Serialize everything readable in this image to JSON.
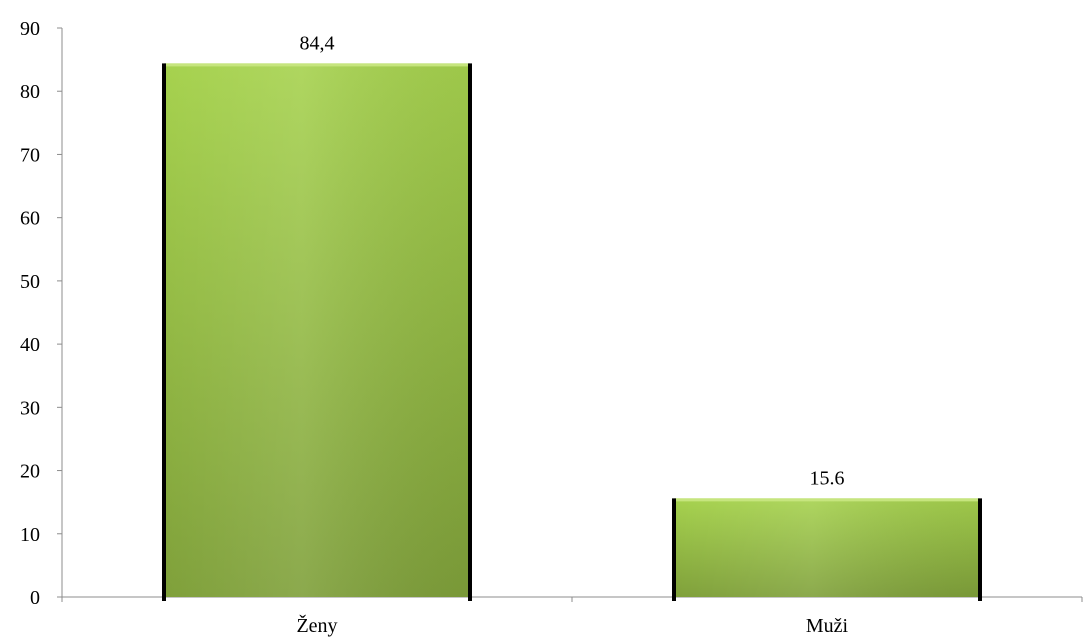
{
  "chart_data": {
    "type": "bar",
    "title": "",
    "xlabel": "",
    "ylabel": "",
    "categories": [
      "Ženy",
      "Muži"
    ],
    "values": [
      84.4,
      15.6
    ],
    "data_labels": [
      "84,4",
      "15.6"
    ],
    "ylim": [
      0,
      90
    ],
    "yticks": [
      0,
      10,
      20,
      30,
      40,
      50,
      60,
      70,
      80,
      90
    ],
    "grid": false,
    "legend": "none",
    "bar_color_top": "#a6d24e",
    "bar_color_bottom": "#7fa03a",
    "bar_edge_color": "#000000"
  }
}
